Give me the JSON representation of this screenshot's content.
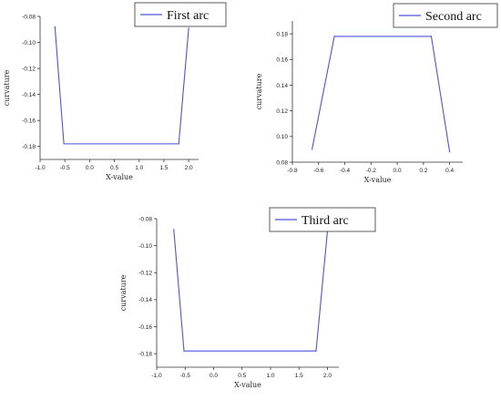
{
  "colors": {
    "line": "#4a56d8",
    "axis": "#333333",
    "legend_border": "#333333"
  },
  "chart_data": [
    {
      "type": "line",
      "title": "",
      "xlabel": "X-value",
      "ylabel": "curvature",
      "xlim": [
        -1.0,
        2.2
      ],
      "ylim": [
        -0.19,
        -0.08
      ],
      "xticks": [
        "-1.0",
        "-0.5",
        "0.0",
        "0.5",
        "1.0",
        "1.5",
        "2.0"
      ],
      "xtick_values": [
        -1.0,
        -0.5,
        0.0,
        0.5,
        1.0,
        1.5,
        2.0
      ],
      "yticks": [
        "-0.08",
        "-0.10",
        "-0.12",
        "-0.14",
        "-0.16",
        "-0.18"
      ],
      "ytick_values": [
        -0.08,
        -0.1,
        -0.12,
        -0.14,
        -0.16,
        -0.18
      ],
      "legend_position": "top-right",
      "grid": false,
      "series": [
        {
          "name": "First arc",
          "x": [
            -0.7,
            -0.52,
            1.8,
            2.0
          ],
          "y": [
            -0.088,
            -0.178,
            -0.178,
            -0.089
          ]
        }
      ]
    },
    {
      "type": "line",
      "title": "",
      "xlabel": "X-value",
      "ylabel": "curvature",
      "xlim": [
        -0.8,
        0.5
      ],
      "ylim": [
        0.08,
        0.19
      ],
      "xticks": [
        "-0.8",
        "-0.6",
        "-0.4",
        "-0.2",
        "0.0",
        "0.2",
        "0.4"
      ],
      "xtick_values": [
        -0.8,
        -0.6,
        -0.4,
        -0.2,
        0.0,
        0.2,
        0.4
      ],
      "yticks": [
        "0.18",
        "0.16",
        "0.14",
        "0.12",
        "0.10",
        "0.08"
      ],
      "ytick_values": [
        0.18,
        0.16,
        0.14,
        0.12,
        0.1,
        0.08
      ],
      "legend_position": "top-right",
      "grid": false,
      "series": [
        {
          "name": "Second arc",
          "x": [
            -0.65,
            -0.48,
            0.26,
            0.4
          ],
          "y": [
            0.09,
            0.178,
            0.178,
            0.088
          ]
        }
      ]
    },
    {
      "type": "line",
      "title": "",
      "xlabel": "X-value",
      "ylabel": "curvature",
      "xlim": [
        -1.0,
        2.2
      ],
      "ylim": [
        -0.19,
        -0.08
      ],
      "xticks": [
        "-1.0",
        "-0.5",
        "0.0",
        "0.5",
        "1.0",
        "1.5",
        "2.0"
      ],
      "xtick_values": [
        -1.0,
        -0.5,
        0.0,
        0.5,
        1.0,
        1.5,
        2.0
      ],
      "yticks": [
        "-0.08",
        "-0.10",
        "-0.12",
        "-0.14",
        "-0.16",
        "-0.18"
      ],
      "ytick_values": [
        -0.08,
        -0.1,
        -0.12,
        -0.14,
        -0.16,
        -0.18
      ],
      "legend_position": "top-right",
      "grid": false,
      "series": [
        {
          "name": "Third arc",
          "x": [
            -0.7,
            -0.52,
            1.8,
            2.0
          ],
          "y": [
            -0.088,
            -0.178,
            -0.178,
            -0.089
          ]
        }
      ]
    }
  ]
}
